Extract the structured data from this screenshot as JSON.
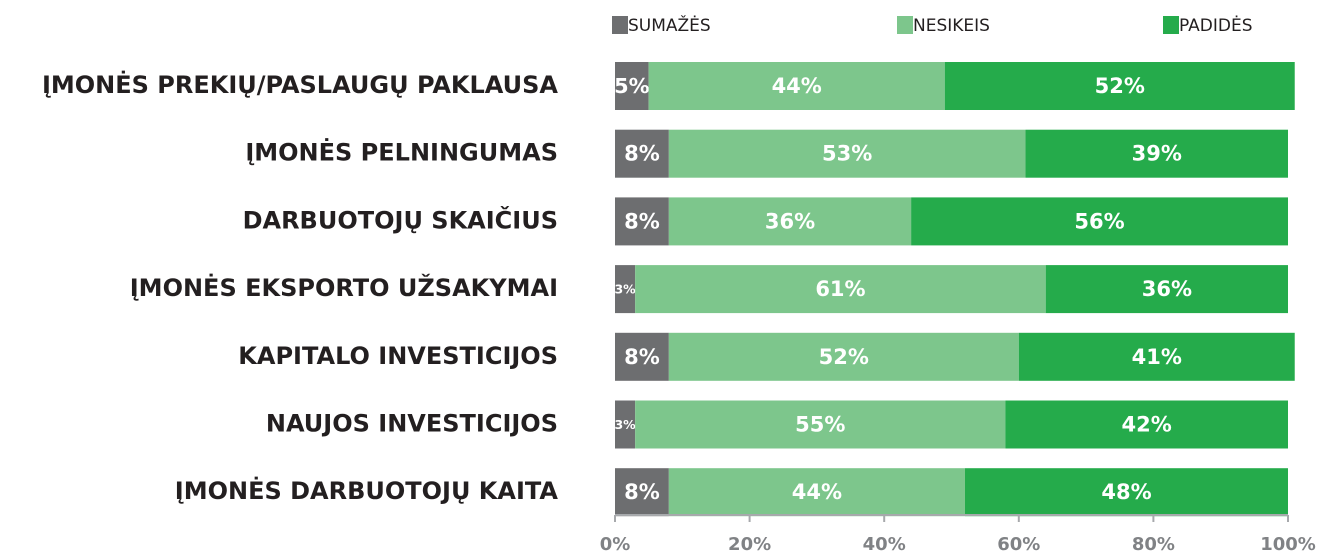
{
  "chart_data": {
    "type": "stacked-barh",
    "categories": [
      "ĮMONĖS PREKIŲ/PASLAUGŲ PAKLAUSA",
      "ĮMONĖS PELNINGUMAS",
      "DARBUOTOJŲ SKAIČIUS",
      "ĮMONĖS EKSPORTO UŽSAKYMAI",
      "KAPITALO INVESTICIJOS",
      "NAUJOS INVESTICIJOS",
      "ĮMONĖS DARBUOTOJŲ KAITA"
    ],
    "series": [
      {
        "name": "SUMAŽĖS",
        "color": "#6d6e70",
        "values": [
          5,
          8,
          8,
          3,
          8,
          3,
          8
        ],
        "value_labels": [
          "5%",
          "8%",
          "8%",
          "3%",
          "8%",
          "3%",
          "8%"
        ]
      },
      {
        "name": "NESIKEIS",
        "color": "#7dc68c",
        "values": [
          44,
          53,
          36,
          61,
          52,
          55,
          44
        ],
        "value_labels": [
          "44%",
          "53%",
          "36%",
          "61%",
          "52%",
          "55%",
          "44%"
        ]
      },
      {
        "name": "PADIDĖS",
        "color": "#25ab4b",
        "values": [
          52,
          39,
          56,
          36,
          41,
          42,
          48
        ],
        "value_labels": [
          "52%",
          "39%",
          "56%",
          "36%",
          "41%",
          "42%",
          "48%"
        ]
      }
    ],
    "xlim": [
      0,
      100
    ],
    "xticks": [
      {
        "value": 0,
        "label": "0%"
      },
      {
        "value": 20,
        "label": "20%"
      },
      {
        "value": 40,
        "label": "40%"
      },
      {
        "value": 60,
        "label": "60%"
      },
      {
        "value": 80,
        "label": "80%"
      },
      {
        "value": 100,
        "label": "100%"
      }
    ],
    "legend": "top"
  }
}
